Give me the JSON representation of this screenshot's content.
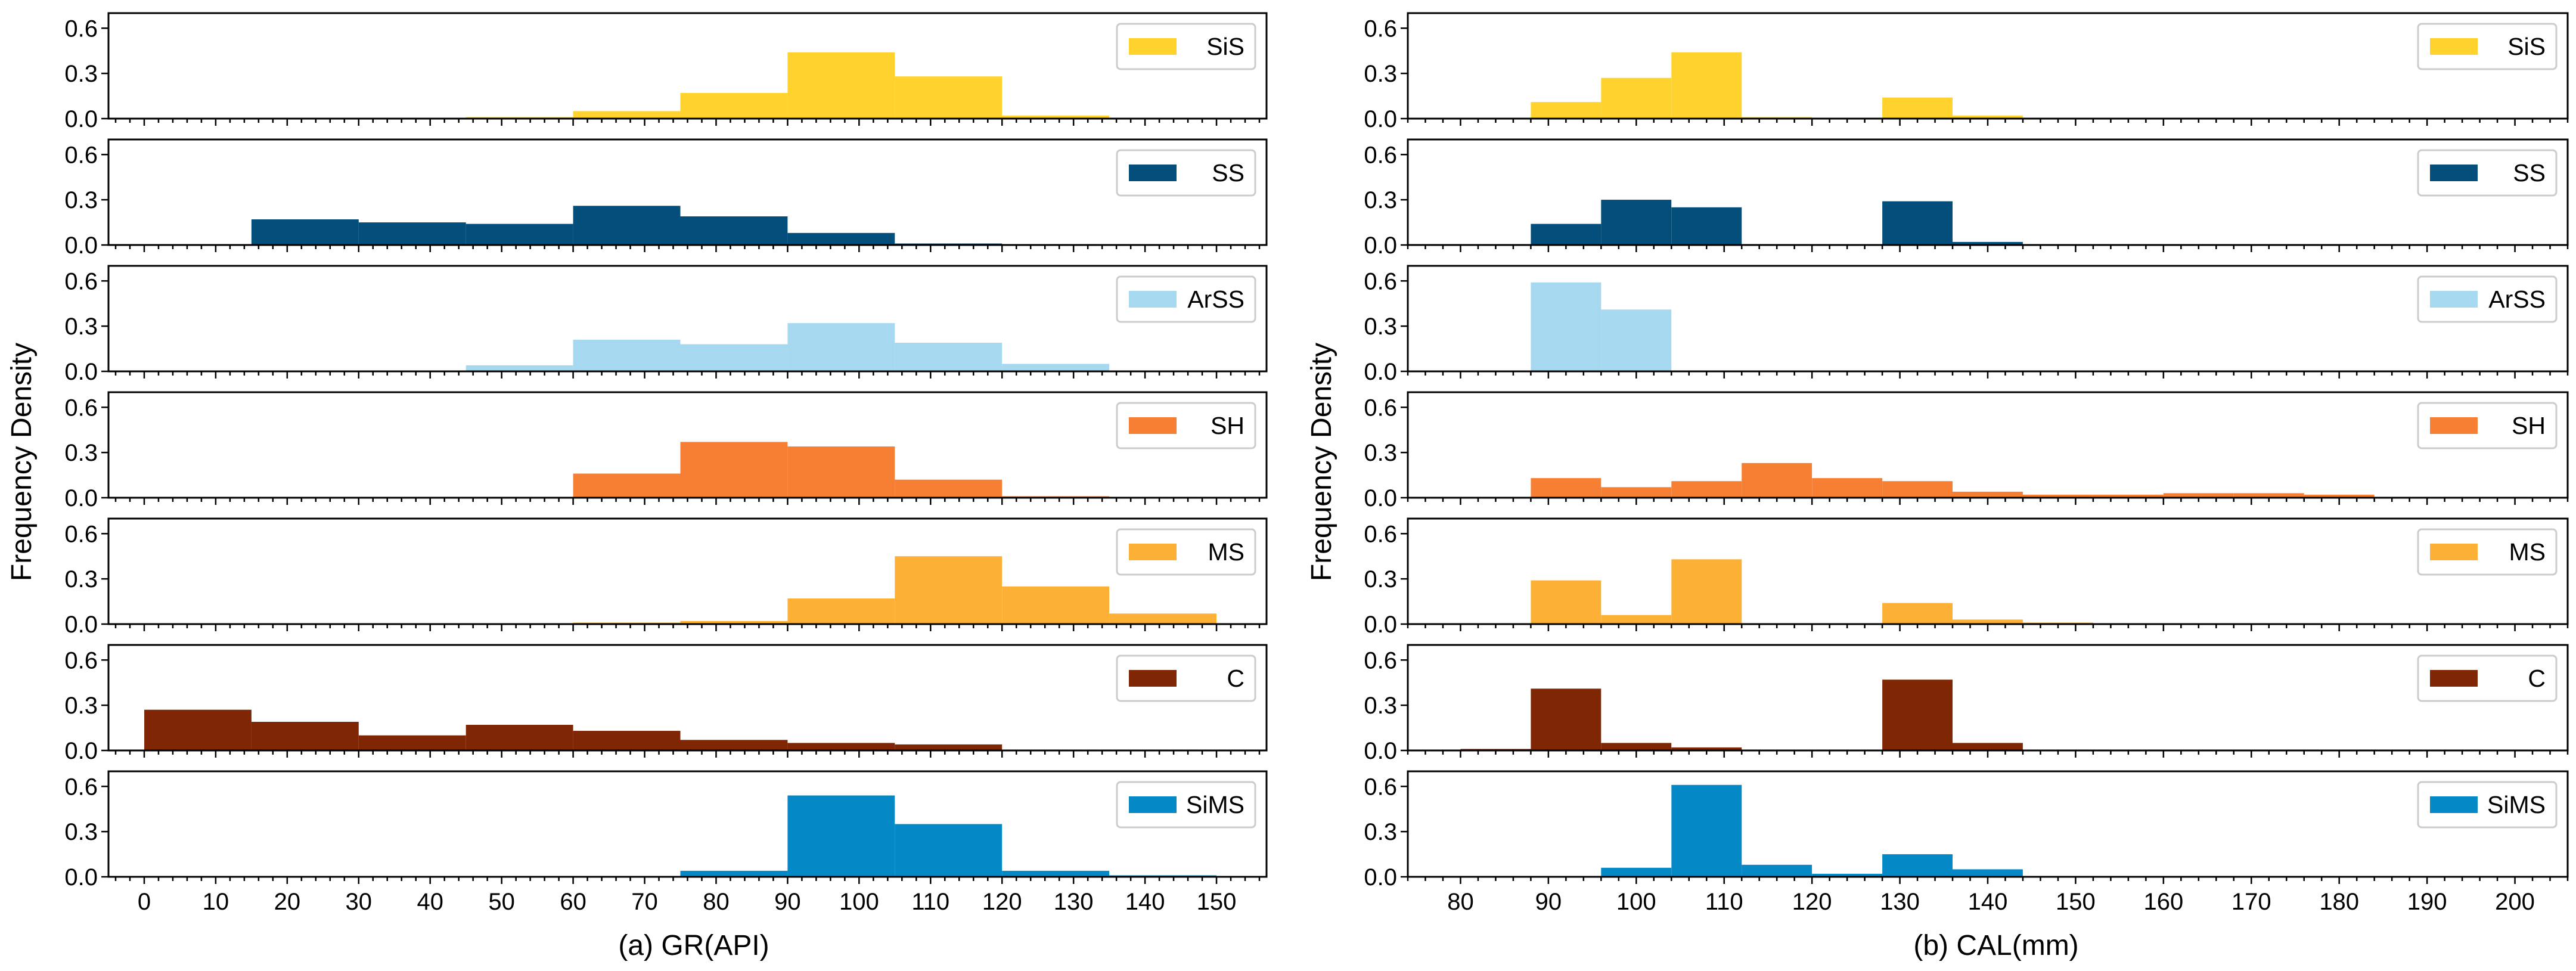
{
  "figure": {
    "y_axis_title": "Frequency Density"
  },
  "chart_data": [
    {
      "type": "bar",
      "panel": "(a)",
      "title": "",
      "xlabel": "(a) GR(API)",
      "ylabel": "Frequency Density",
      "xlim": [
        -5,
        157
      ],
      "ylim": [
        0,
        0.7
      ],
      "xticks": [
        0,
        10,
        20,
        30,
        40,
        50,
        60,
        70,
        80,
        90,
        100,
        110,
        120,
        130,
        140,
        150
      ],
      "xtick_labels": [
        "0",
        "10",
        "20",
        "30",
        "40",
        "50",
        "60",
        "70",
        "80",
        "90",
        "100",
        "110",
        "120",
        "130",
        "140",
        "150"
      ],
      "minor_xtick_step": 2,
      "yticks": [
        0.0,
        0.3,
        0.6
      ],
      "ytick_labels": [
        "0.0",
        "0.3",
        "0.6"
      ],
      "bin_edges": [
        0,
        15,
        30,
        45,
        60,
        75,
        90,
        105,
        120,
        135,
        150
      ],
      "legend_position": "top-right",
      "series": [
        {
          "name": "SiS",
          "color": "#FFD22E",
          "values": [
            0,
            0,
            0,
            0.01,
            0.05,
            0.17,
            0.44,
            0.28,
            0.02,
            0
          ]
        },
        {
          "name": "SS",
          "color": "#034E7B",
          "values": [
            0,
            0.17,
            0.15,
            0.14,
            0.26,
            0.19,
            0.08,
            0.01,
            0,
            0
          ]
        },
        {
          "name": "ArSS",
          "color": "#A6D8F0",
          "values": [
            0,
            0,
            0,
            0.04,
            0.21,
            0.18,
            0.32,
            0.19,
            0.05,
            0
          ]
        },
        {
          "name": "SH",
          "color": "#F77F33",
          "values": [
            0,
            0,
            0,
            0,
            0.16,
            0.37,
            0.34,
            0.12,
            0.01,
            0
          ]
        },
        {
          "name": "MS",
          "color": "#FDB036",
          "values": [
            0,
            0,
            0,
            0,
            0.01,
            0.02,
            0.17,
            0.45,
            0.25,
            0.07
          ]
        },
        {
          "name": "C",
          "color": "#7F2704",
          "values": [
            0.27,
            0.19,
            0.1,
            0.17,
            0.13,
            0.07,
            0.05,
            0.04,
            0,
            0
          ]
        },
        {
          "name": "SiMS",
          "color": "#0488C6",
          "values": [
            0,
            0,
            0,
            0,
            0,
            0.04,
            0.54,
            0.35,
            0.04,
            0.01
          ]
        }
      ]
    },
    {
      "type": "bar",
      "panel": "(b)",
      "title": "",
      "xlabel": "(b) CAL(mm)",
      "ylabel": "Frequency Density",
      "xlim": [
        74,
        206
      ],
      "ylim": [
        0,
        0.7
      ],
      "xticks": [
        80,
        90,
        100,
        110,
        120,
        130,
        140,
        150,
        160,
        170,
        180,
        190,
        200
      ],
      "xtick_labels": [
        "80",
        "90",
        "100",
        "110",
        "120",
        "130",
        "140",
        "150",
        "160",
        "170",
        "180",
        "190",
        "200"
      ],
      "minor_xtick_step": 2,
      "yticks": [
        0.0,
        0.3,
        0.6
      ],
      "ytick_labels": [
        "0.0",
        "0.3",
        "0.6"
      ],
      "bin_edges": [
        72,
        80,
        88,
        96,
        104,
        112,
        120,
        128,
        136,
        144,
        152,
        160,
        168,
        176,
        184
      ],
      "legend_position": "top-right",
      "series": [
        {
          "name": "SiS",
          "color": "#FFD22E",
          "values": [
            0,
            0,
            0.11,
            0.27,
            0.44,
            0.01,
            0,
            0.14,
            0.02,
            0,
            0,
            0,
            0,
            0
          ]
        },
        {
          "name": "SS",
          "color": "#034E7B",
          "values": [
            0,
            0,
            0.14,
            0.3,
            0.25,
            0,
            0,
            0.29,
            0.02,
            0,
            0,
            0,
            0,
            0
          ]
        },
        {
          "name": "ArSS",
          "color": "#A6D8F0",
          "values": [
            0,
            0,
            0.59,
            0.41,
            0,
            0,
            0,
            0,
            0,
            0,
            0,
            0,
            0,
            0
          ]
        },
        {
          "name": "SH",
          "color": "#F77F33",
          "values": [
            0,
            0,
            0.13,
            0.07,
            0.11,
            0.23,
            0.13,
            0.11,
            0.04,
            0.02,
            0.02,
            0.03,
            0.03,
            0.02
          ]
        },
        {
          "name": "MS",
          "color": "#FDB036",
          "values": [
            0,
            0,
            0.29,
            0.06,
            0.43,
            0,
            0,
            0.14,
            0.03,
            0.01,
            0,
            0,
            0,
            0
          ]
        },
        {
          "name": "C",
          "color": "#7F2704",
          "values": [
            0,
            0.01,
            0.41,
            0.05,
            0.02,
            0,
            0,
            0.47,
            0.05,
            0,
            0,
            0,
            0,
            0
          ]
        },
        {
          "name": "SiMS",
          "color": "#0488C6",
          "values": [
            0,
            0,
            0,
            0.06,
            0.61,
            0.08,
            0.02,
            0.15,
            0.05,
            0,
            0,
            0,
            0,
            0
          ]
        }
      ]
    }
  ]
}
